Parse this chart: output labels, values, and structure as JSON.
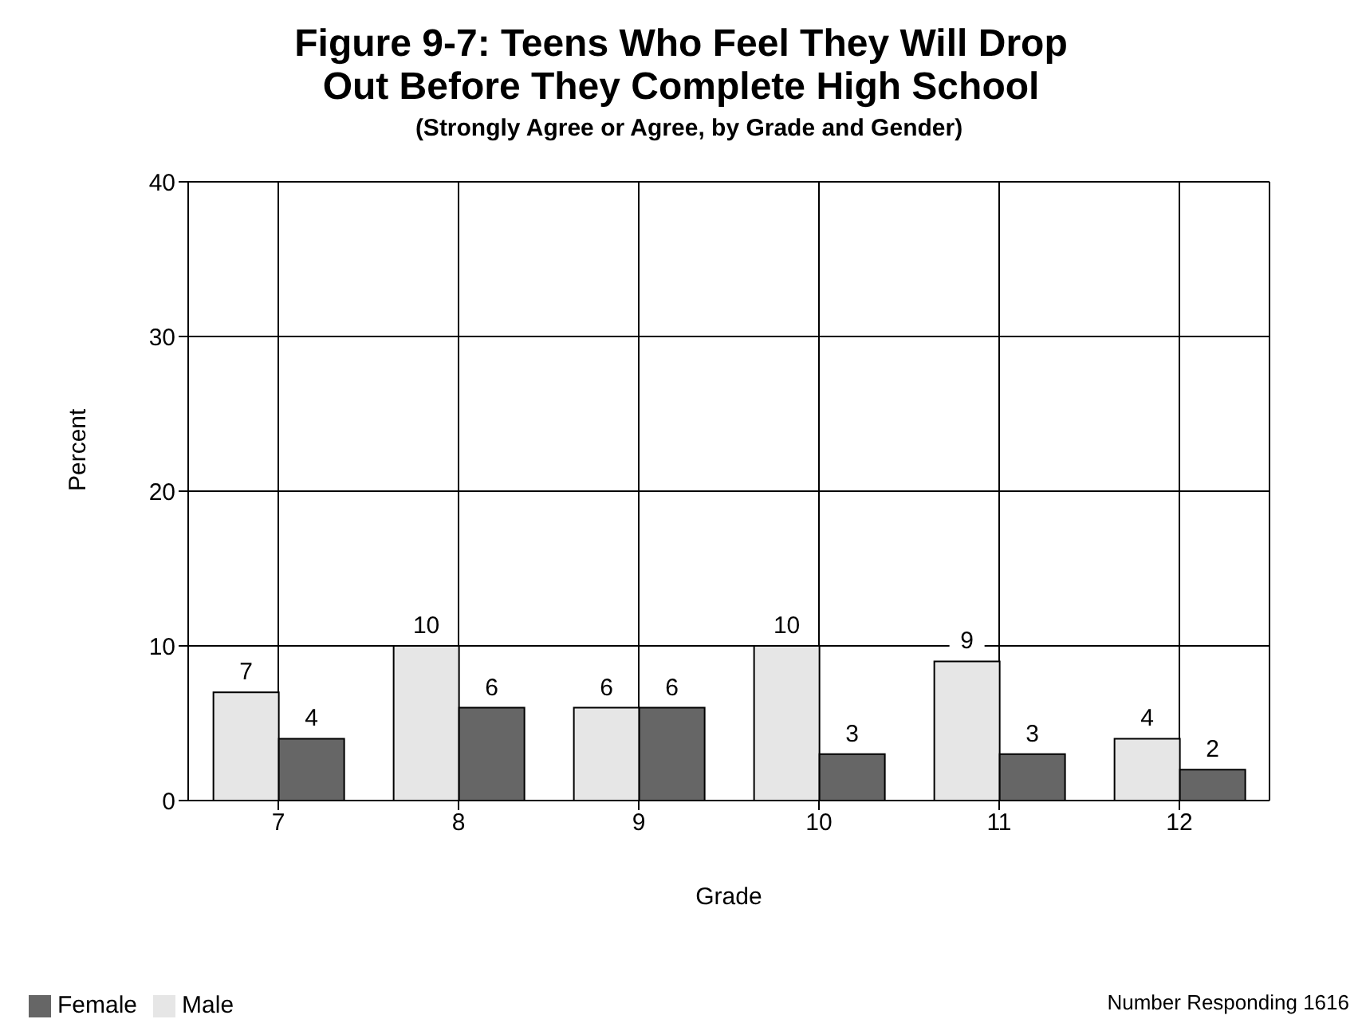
{
  "chart_data": {
    "type": "bar",
    "title": "Figure 9-7: Teens Who Feel They Will Drop Out Before They Complete High School",
    "subtitle": "(Strongly Agree or Agree, by Grade and Gender)",
    "xlabel": "Grade",
    "ylabel": "Percent",
    "categories": [
      "7",
      "8",
      "9",
      "10",
      "11",
      "12"
    ],
    "series": [
      {
        "name": "Male",
        "color": "#e6e6e6",
        "values": [
          7,
          10,
          6,
          10,
          9,
          4
        ]
      },
      {
        "name": "Female",
        "color": "#666666",
        "values": [
          4,
          6,
          6,
          3,
          3,
          2
        ]
      }
    ],
    "ylim": [
      0,
      40
    ],
    "yticks": [
      0,
      10,
      20,
      30,
      40
    ],
    "grid": true,
    "data_labels": true,
    "legend": "bottom left",
    "annotations": [
      "Number Responding 1616"
    ]
  }
}
